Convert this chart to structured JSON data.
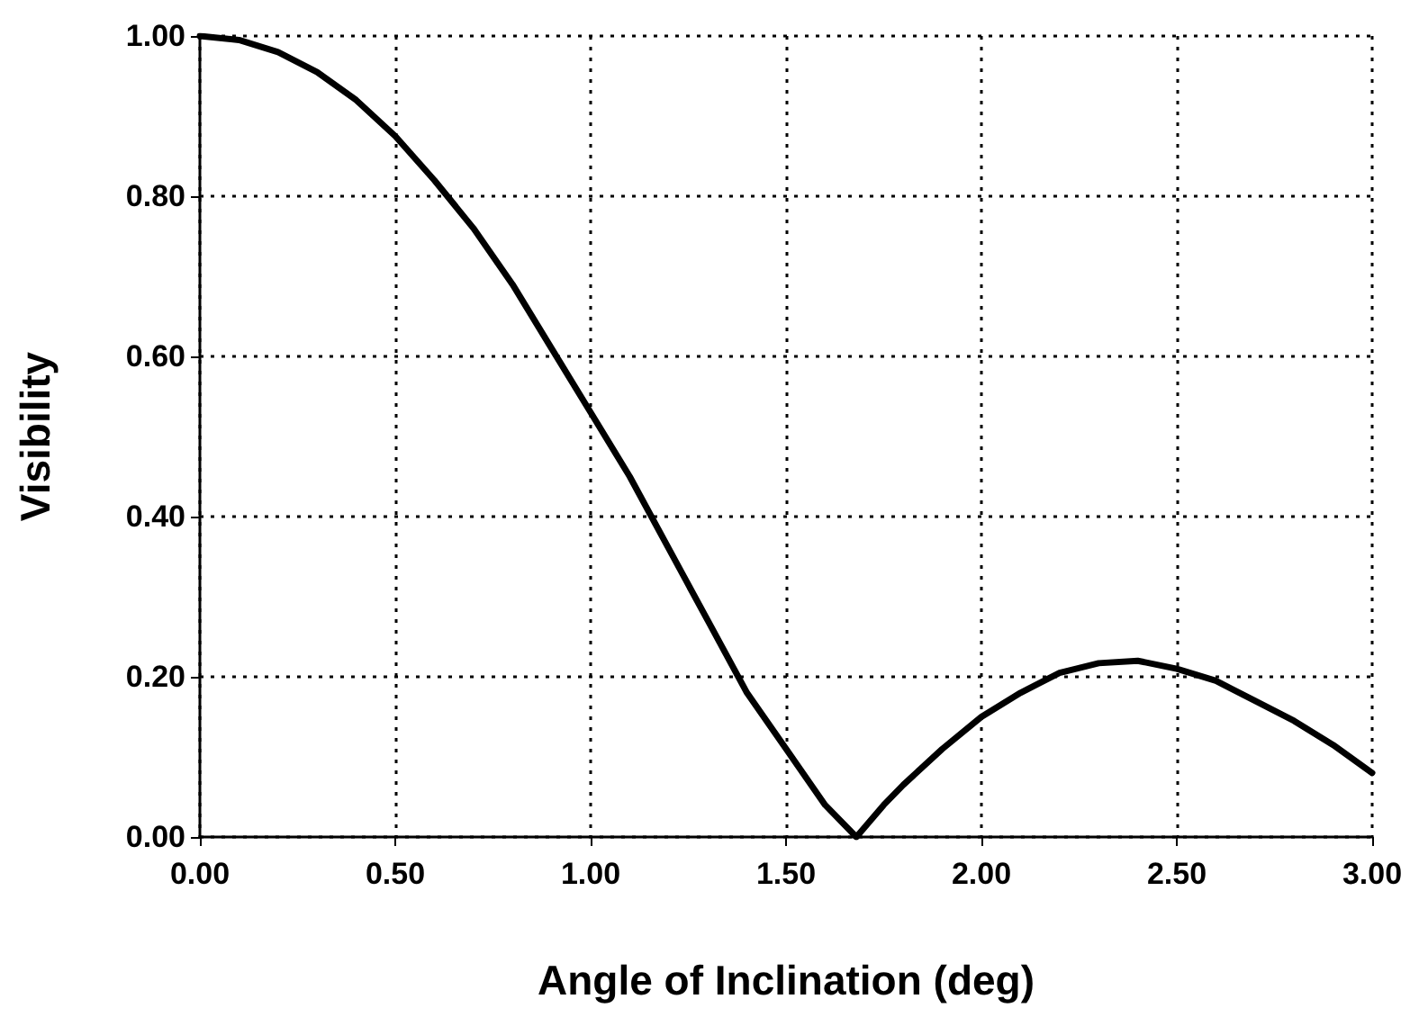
{
  "chart_data": {
    "type": "line",
    "xlabel": "Angle of Inclination (deg)",
    "ylabel": "Visibility",
    "x": [
      0,
      0.1,
      0.2,
      0.3,
      0.4,
      0.5,
      0.6,
      0.7,
      0.8,
      0.9,
      1.0,
      1.1,
      1.2,
      1.3,
      1.4,
      1.5,
      1.6,
      1.68,
      1.75,
      1.8,
      1.9,
      2.0,
      2.1,
      2.2,
      2.3,
      2.4,
      2.5,
      2.6,
      2.7,
      2.8,
      2.9,
      3.0
    ],
    "series": [
      {
        "color": "#000000",
        "values": [
          1.0,
          0.995,
          0.98,
          0.955,
          0.92,
          0.875,
          0.82,
          0.76,
          0.69,
          0.61,
          0.53,
          0.45,
          0.36,
          0.27,
          0.18,
          0.11,
          0.04,
          0.0,
          0.04,
          0.065,
          0.11,
          0.15,
          0.18,
          0.205,
          0.217,
          0.22,
          0.21,
          0.195,
          0.17,
          0.145,
          0.115,
          0.08
        ]
      }
    ],
    "xlim": [
      0,
      3
    ],
    "ylim": [
      0,
      1
    ],
    "xticks": [
      {
        "value": 0,
        "label": "0.00"
      },
      {
        "value": 0.5,
        "label": "0.50"
      },
      {
        "value": 1,
        "label": "1.00"
      },
      {
        "value": 1.5,
        "label": "1.50"
      },
      {
        "value": 2,
        "label": "2.00"
      },
      {
        "value": 2.5,
        "label": "2.50"
      },
      {
        "value": 3,
        "label": "3.00"
      }
    ],
    "yticks": [
      {
        "value": 0,
        "label": "0.00"
      },
      {
        "value": 0.2,
        "label": "0.20"
      },
      {
        "value": 0.4,
        "label": "0.40"
      },
      {
        "value": 0.6,
        "label": "0.60"
      },
      {
        "value": 0.8,
        "label": "0.80"
      },
      {
        "value": 1,
        "label": "1.00"
      }
    ],
    "grid": true,
    "marker": "none",
    "line_style": "solid"
  }
}
